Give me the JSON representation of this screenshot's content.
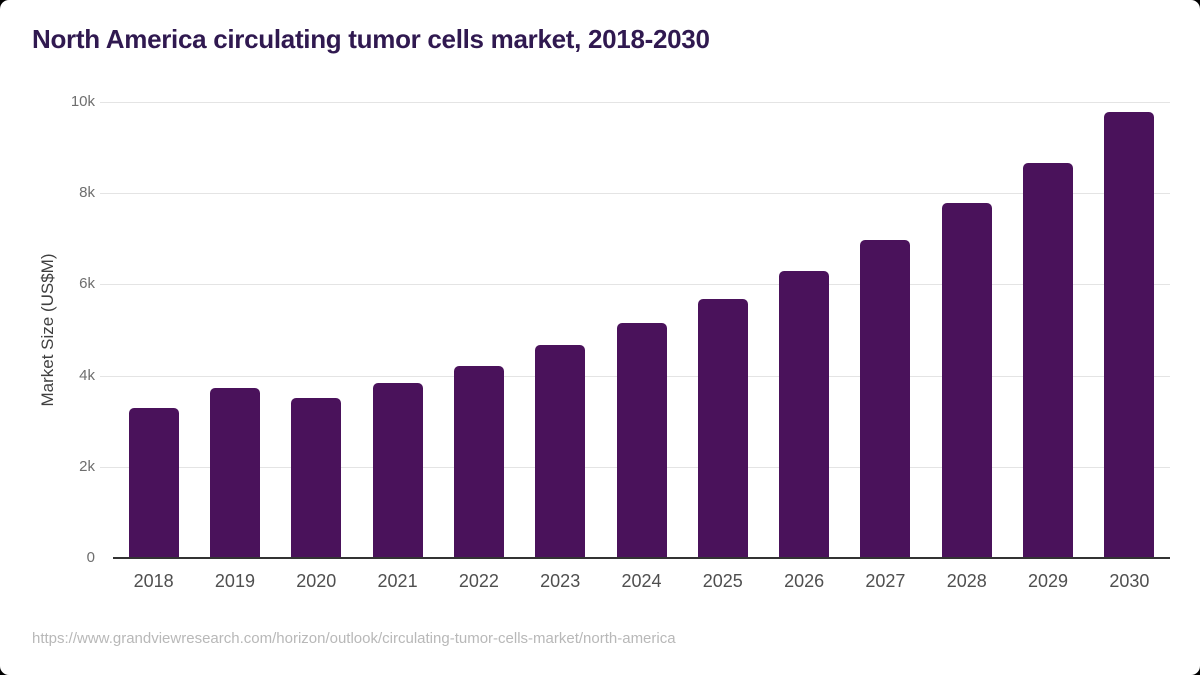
{
  "header": {
    "title": "North America circulating tumor cells market, 2018-2030"
  },
  "chart_data": {
    "type": "bar",
    "title": "North America circulating tumor cells market, 2018-2030",
    "categories": [
      "2018",
      "2019",
      "2020",
      "2021",
      "2022",
      "2023",
      "2024",
      "2025",
      "2026",
      "2027",
      "2028",
      "2029",
      "2030"
    ],
    "values": [
      3300,
      3720,
      3500,
      3830,
      4200,
      4670,
      5150,
      5690,
      6300,
      6980,
      7780,
      8660,
      9780
    ],
    "xlabel": "",
    "ylabel": "Market Size (US$M)",
    "ylim": [
      0,
      10000
    ],
    "y_ticks": [
      {
        "value": 0,
        "label": "0"
      },
      {
        "value": 2000,
        "label": "2k"
      },
      {
        "value": 4000,
        "label": "4k"
      },
      {
        "value": 6000,
        "label": "6k"
      },
      {
        "value": 8000,
        "label": "8k"
      },
      {
        "value": 10000,
        "label": "10k"
      }
    ],
    "grid": true,
    "legend": false,
    "bar_color": "#4a125b",
    "background_color": "#ffffff",
    "title_color": "#301950"
  },
  "footer": {
    "source_url": "https://www.grandviewresearch.com/horizon/outlook/circulating-tumor-cells-market/north-america"
  }
}
